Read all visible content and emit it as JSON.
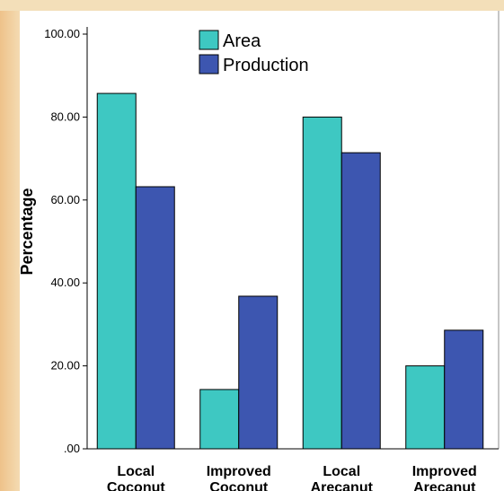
{
  "chart_data": {
    "type": "bar",
    "categories": [
      [
        "Local",
        "Coconut"
      ],
      [
        "Improved",
        "Coconut"
      ],
      [
        "Local",
        "Arecanut"
      ],
      [
        "Improved",
        "Arecanut"
      ]
    ],
    "series": [
      {
        "name": "Area",
        "values": [
          85.7,
          14.3,
          80.0,
          20.0
        ],
        "color": "#3ec8c2"
      },
      {
        "name": "Production",
        "values": [
          63.2,
          36.8,
          71.4,
          28.6
        ],
        "color": "#3d56b0"
      }
    ],
    "title": "",
    "xlabel": "",
    "ylabel": "Percentage",
    "ylim": [
      0,
      100
    ],
    "yticks": [
      0,
      20,
      40,
      60,
      80,
      100
    ],
    "ytick_labels": [
      ".00",
      "20.00",
      "40.00",
      "60.00",
      "80.00",
      "100.00"
    ],
    "grid": false,
    "legend_position": "top-center"
  },
  "colors": {
    "background_left": "#efc98e",
    "background_top": "#f3dfb9",
    "plot_background": "#ffffff",
    "bar_stroke": "#000000"
  }
}
